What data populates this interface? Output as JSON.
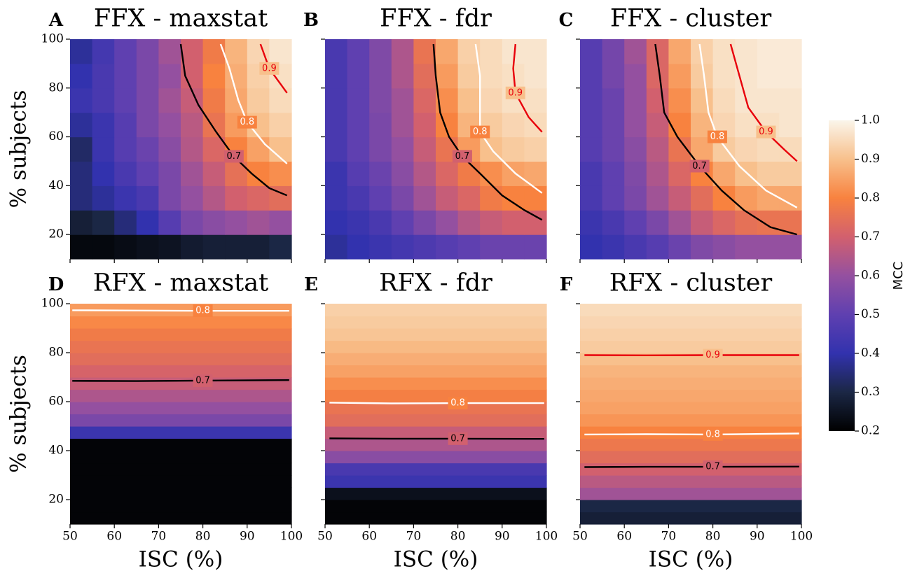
{
  "chart_data": [
    {
      "type": "heatmap",
      "label": "A",
      "title": "FFX - maxstat",
      "ylabel": "% subjects",
      "xlim": [
        50,
        100
      ],
      "ylim": [
        10,
        100
      ],
      "xticks": [
        50,
        60,
        70,
        80,
        90,
        100
      ],
      "yticks": [
        20,
        40,
        60,
        80,
        100
      ],
      "x_edges": [
        50,
        55,
        60,
        65,
        70,
        75,
        80,
        85,
        90,
        95,
        100
      ],
      "y_edges": [
        10,
        20,
        30,
        40,
        50,
        60,
        70,
        80,
        90,
        100
      ],
      "z": [
        [
          0.22,
          0.22,
          0.23,
          0.24,
          0.25,
          0.27,
          0.28,
          0.28,
          0.28,
          0.3
        ],
        [
          0.28,
          0.3,
          0.35,
          0.4,
          0.48,
          0.55,
          0.58,
          0.6,
          0.62,
          0.6
        ],
        [
          0.35,
          0.38,
          0.42,
          0.45,
          0.55,
          0.6,
          0.65,
          0.7,
          0.72,
          0.74
        ],
        [
          0.35,
          0.4,
          0.45,
          0.5,
          0.55,
          0.62,
          0.68,
          0.75,
          0.8,
          0.82
        ],
        [
          0.33,
          0.42,
          0.48,
          0.52,
          0.58,
          0.65,
          0.72,
          0.8,
          0.85,
          0.9
        ],
        [
          0.38,
          0.42,
          0.48,
          0.55,
          0.6,
          0.66,
          0.76,
          0.84,
          0.9,
          0.93
        ],
        [
          0.42,
          0.45,
          0.5,
          0.55,
          0.62,
          0.68,
          0.78,
          0.86,
          0.92,
          0.95
        ],
        [
          0.4,
          0.45,
          0.5,
          0.55,
          0.6,
          0.7,
          0.8,
          0.87,
          0.93,
          0.96
        ],
        [
          0.38,
          0.44,
          0.5,
          0.55,
          0.62,
          0.7,
          0.78,
          0.88,
          0.94,
          0.97
        ]
      ],
      "contours": [
        {
          "level": 0.7,
          "color": "#000000",
          "x": [
            75,
            76,
            79,
            83,
            87,
            91,
            95,
            99
          ],
          "y": [
            98,
            85,
            73,
            62,
            52,
            45,
            39,
            36
          ]
        },
        {
          "level": 0.8,
          "color": "#ffffff",
          "x": [
            84,
            86,
            88,
            90,
            94,
            99
          ],
          "y": [
            98,
            88,
            75,
            66,
            57,
            49
          ]
        },
        {
          "level": 0.9,
          "color": "#e8000b",
          "x": [
            93,
            95,
            99
          ],
          "y": [
            98,
            88,
            78
          ]
        }
      ]
    },
    {
      "type": "heatmap",
      "label": "B",
      "title": "FFX - fdr",
      "xlim": [
        50,
        100
      ],
      "ylim": [
        10,
        100
      ],
      "xticks": [
        50,
        60,
        70,
        80,
        90,
        100
      ],
      "yticks": [
        20,
        40,
        60,
        80,
        100
      ],
      "x_edges": [
        50,
        55,
        60,
        65,
        70,
        75,
        80,
        85,
        90,
        95,
        100
      ],
      "y_edges": [
        10,
        20,
        30,
        40,
        50,
        60,
        70,
        80,
        90,
        100
      ],
      "z": [
        [
          0.38,
          0.4,
          0.42,
          0.44,
          0.46,
          0.48,
          0.5,
          0.52,
          0.52,
          0.52
        ],
        [
          0.4,
          0.42,
          0.45,
          0.5,
          0.55,
          0.6,
          0.65,
          0.68,
          0.7,
          0.7
        ],
        [
          0.42,
          0.45,
          0.5,
          0.55,
          0.62,
          0.68,
          0.72,
          0.78,
          0.8,
          0.8
        ],
        [
          0.42,
          0.48,
          0.52,
          0.58,
          0.65,
          0.72,
          0.78,
          0.82,
          0.85,
          0.86
        ],
        [
          0.45,
          0.5,
          0.55,
          0.6,
          0.68,
          0.76,
          0.84,
          0.9,
          0.92,
          0.93
        ],
        [
          0.45,
          0.5,
          0.55,
          0.62,
          0.7,
          0.8,
          0.88,
          0.92,
          0.94,
          0.95
        ],
        [
          0.45,
          0.5,
          0.56,
          0.62,
          0.72,
          0.82,
          0.9,
          0.94,
          0.96,
          0.96
        ],
        [
          0.45,
          0.5,
          0.56,
          0.64,
          0.74,
          0.84,
          0.92,
          0.95,
          0.96,
          0.97
        ],
        [
          0.45,
          0.5,
          0.56,
          0.64,
          0.76,
          0.86,
          0.93,
          0.95,
          0.97,
          0.97
        ]
      ],
      "contours": [
        {
          "level": 0.7,
          "color": "#000000",
          "x": [
            74.5,
            75,
            76,
            78,
            81,
            85,
            90,
            95,
            99
          ],
          "y": [
            98,
            85,
            70,
            60,
            52,
            45,
            36,
            30,
            26
          ]
        },
        {
          "level": 0.8,
          "color": "#ffffff",
          "x": [
            84,
            85,
            85,
            85,
            88,
            93,
            99
          ],
          "y": [
            98,
            85,
            72,
            62,
            54,
            45,
            37
          ]
        },
        {
          "level": 0.9,
          "color": "#e8000b",
          "x": [
            93,
            92.5,
            93,
            96,
            99
          ],
          "y": [
            98,
            88,
            78,
            68,
            62
          ]
        }
      ]
    },
    {
      "type": "heatmap",
      "label": "C",
      "title": "FFX - cluster",
      "xlim": [
        50,
        100
      ],
      "ylim": [
        10,
        100
      ],
      "xticks": [
        50,
        60,
        70,
        80,
        90,
        100
      ],
      "yticks": [
        20,
        40,
        60,
        80,
        100
      ],
      "x_edges": [
        50,
        55,
        60,
        65,
        70,
        75,
        80,
        85,
        90,
        95,
        100
      ],
      "y_edges": [
        10,
        20,
        30,
        40,
        50,
        60,
        70,
        80,
        90,
        100
      ],
      "z": [
        [
          0.4,
          0.42,
          0.45,
          0.48,
          0.52,
          0.56,
          0.58,
          0.6,
          0.6,
          0.6
        ],
        [
          0.42,
          0.45,
          0.5,
          0.55,
          0.62,
          0.68,
          0.72,
          0.75,
          0.76,
          0.76
        ],
        [
          0.45,
          0.5,
          0.55,
          0.62,
          0.68,
          0.74,
          0.8,
          0.84,
          0.86,
          0.86
        ],
        [
          0.45,
          0.5,
          0.56,
          0.64,
          0.72,
          0.8,
          0.86,
          0.9,
          0.92,
          0.92
        ],
        [
          0.48,
          0.52,
          0.58,
          0.66,
          0.76,
          0.86,
          0.92,
          0.94,
          0.95,
          0.95
        ],
        [
          0.48,
          0.52,
          0.6,
          0.68,
          0.8,
          0.88,
          0.94,
          0.96,
          0.96,
          0.97
        ],
        [
          0.48,
          0.52,
          0.6,
          0.7,
          0.82,
          0.9,
          0.95,
          0.97,
          0.97,
          0.97
        ],
        [
          0.48,
          0.54,
          0.6,
          0.72,
          0.84,
          0.92,
          0.96,
          0.97,
          0.98,
          0.98
        ],
        [
          0.48,
          0.54,
          0.62,
          0.72,
          0.86,
          0.93,
          0.96,
          0.97,
          0.98,
          0.98
        ]
      ],
      "contours": [
        {
          "level": 0.7,
          "color": "#000000",
          "x": [
            67,
            68,
            69,
            72,
            77,
            82,
            87,
            93,
            99
          ],
          "y": [
            98,
            85,
            70,
            60,
            48,
            38,
            30,
            23,
            20
          ]
        },
        {
          "level": 0.8,
          "color": "#ffffff",
          "x": [
            77,
            78,
            79,
            81,
            86,
            92,
            99
          ],
          "y": [
            98,
            85,
            70,
            60,
            48,
            38,
            31
          ]
        },
        {
          "level": 0.9,
          "color": "#e8000b",
          "x": [
            84,
            86,
            88,
            92,
            96,
            99
          ],
          "y": [
            98,
            85,
            72,
            62,
            55,
            50
          ]
        }
      ]
    },
    {
      "type": "heatmap",
      "label": "D",
      "title": "RFX - maxstat",
      "ylabel": "% subjects",
      "xlabel": "ISC (%)",
      "xlim": [
        50,
        100
      ],
      "ylim": [
        10,
        100
      ],
      "xticks": [
        50,
        60,
        70,
        80,
        90,
        100
      ],
      "yticks": [
        20,
        40,
        60,
        80,
        100
      ],
      "x_edges": [
        50,
        100
      ],
      "y_edges": [
        10,
        15,
        20,
        25,
        30,
        35,
        40,
        45,
        50,
        55,
        60,
        65,
        70,
        75,
        80,
        85,
        90,
        95,
        100
      ],
      "z": [
        [
          0.21
        ],
        [
          0.21
        ],
        [
          0.21
        ],
        [
          0.21
        ],
        [
          0.21
        ],
        [
          0.21
        ],
        [
          0.21
        ],
        [
          0.42
        ],
        [
          0.55
        ],
        [
          0.6
        ],
        [
          0.64
        ],
        [
          0.68
        ],
        [
          0.71
        ],
        [
          0.74
        ],
        [
          0.76
        ],
        [
          0.78
        ],
        [
          0.81
        ],
        [
          0.84
        ]
      ],
      "contours": [
        {
          "level": 0.7,
          "color": "#000000",
          "x": [
            50.5,
            65,
            80,
            99.5
          ],
          "y": [
            68.5,
            68.4,
            68.6,
            68.8
          ]
        },
        {
          "level": 0.8,
          "color": "#ffffff",
          "x": [
            50.5,
            65,
            80,
            99.5
          ],
          "y": [
            97.3,
            97.2,
            97.1,
            97.1
          ]
        }
      ]
    },
    {
      "type": "heatmap",
      "label": "E",
      "title": "RFX - fdr",
      "xlabel": "ISC (%)",
      "xlim": [
        50,
        100
      ],
      "ylim": [
        10,
        100
      ],
      "xticks": [
        50,
        60,
        70,
        80,
        90,
        100
      ],
      "yticks": [
        20,
        40,
        60,
        80,
        100
      ],
      "x_edges": [
        50,
        100
      ],
      "y_edges": [
        10,
        15,
        20,
        25,
        30,
        35,
        40,
        45,
        50,
        55,
        60,
        65,
        70,
        75,
        80,
        85,
        90,
        95,
        100
      ],
      "z": [
        [
          0.21
        ],
        [
          0.21
        ],
        [
          0.24
        ],
        [
          0.42
        ],
        [
          0.45
        ],
        [
          0.58
        ],
        [
          0.64
        ],
        [
          0.68
        ],
        [
          0.74
        ],
        [
          0.76
        ],
        [
          0.79
        ],
        [
          0.82
        ],
        [
          0.85
        ],
        [
          0.87
        ],
        [
          0.89
        ],
        [
          0.91
        ],
        [
          0.92
        ],
        [
          0.93
        ]
      ],
      "contours": [
        {
          "level": 0.7,
          "color": "#000000",
          "x": [
            51,
            65,
            80,
            99.5
          ],
          "y": [
            45,
            44.9,
            44.9,
            44.8
          ]
        },
        {
          "level": 0.8,
          "color": "#ffffff",
          "x": [
            51,
            65,
            80,
            99.5
          ],
          "y": [
            59.6,
            59.3,
            59.4,
            59.4
          ]
        }
      ]
    },
    {
      "type": "heatmap",
      "label": "F",
      "title": "RFX - cluster",
      "xlabel": "ISC (%)",
      "xlim": [
        50,
        100
      ],
      "ylim": [
        10,
        100
      ],
      "xticks": [
        50,
        60,
        70,
        80,
        90,
        100
      ],
      "yticks": [
        20,
        40,
        60,
        80,
        100
      ],
      "x_edges": [
        50,
        100
      ],
      "y_edges": [
        10,
        15,
        20,
        25,
        30,
        35,
        40,
        45,
        50,
        55,
        60,
        65,
        70,
        75,
        80,
        85,
        90,
        95,
        100
      ],
      "z": [
        [
          0.28
        ],
        [
          0.3
        ],
        [
          0.62
        ],
        [
          0.66
        ],
        [
          0.7
        ],
        [
          0.74
        ],
        [
          0.77
        ],
        [
          0.8
        ],
        [
          0.83
        ],
        [
          0.85
        ],
        [
          0.86
        ],
        [
          0.87
        ],
        [
          0.88
        ],
        [
          0.9
        ],
        [
          0.92
        ],
        [
          0.93
        ],
        [
          0.94
        ],
        [
          0.95
        ]
      ],
      "contours": [
        {
          "level": 0.7,
          "color": "#000000",
          "x": [
            51,
            65,
            80,
            99.5
          ],
          "y": [
            33.3,
            33.4,
            33.4,
            33.5
          ]
        },
        {
          "level": 0.8,
          "color": "#ffffff",
          "x": [
            51,
            65,
            80,
            99.5
          ],
          "y": [
            46.6,
            46.7,
            46.6,
            47
          ]
        },
        {
          "level": 0.9,
          "color": "#e8000b",
          "x": [
            51,
            65,
            80,
            99.5
          ],
          "y": [
            79,
            78.9,
            79,
            79
          ]
        }
      ]
    }
  ],
  "colorbar": {
    "label": "MCC",
    "lim": [
      0.2,
      1.0
    ],
    "ticks": [
      0.2,
      0.3,
      0.4,
      0.5,
      0.6,
      0.7,
      0.8,
      0.9,
      {
        "value": 1,
        "label": "1.0"
      }
    ],
    "colormap": [
      "#000000",
      "#1b2745",
      "#3232ae",
      "#5f40b0",
      "#9450a0",
      "#d2606e",
      "#f8823f",
      "#f8c08c",
      "#faf5ea"
    ]
  }
}
